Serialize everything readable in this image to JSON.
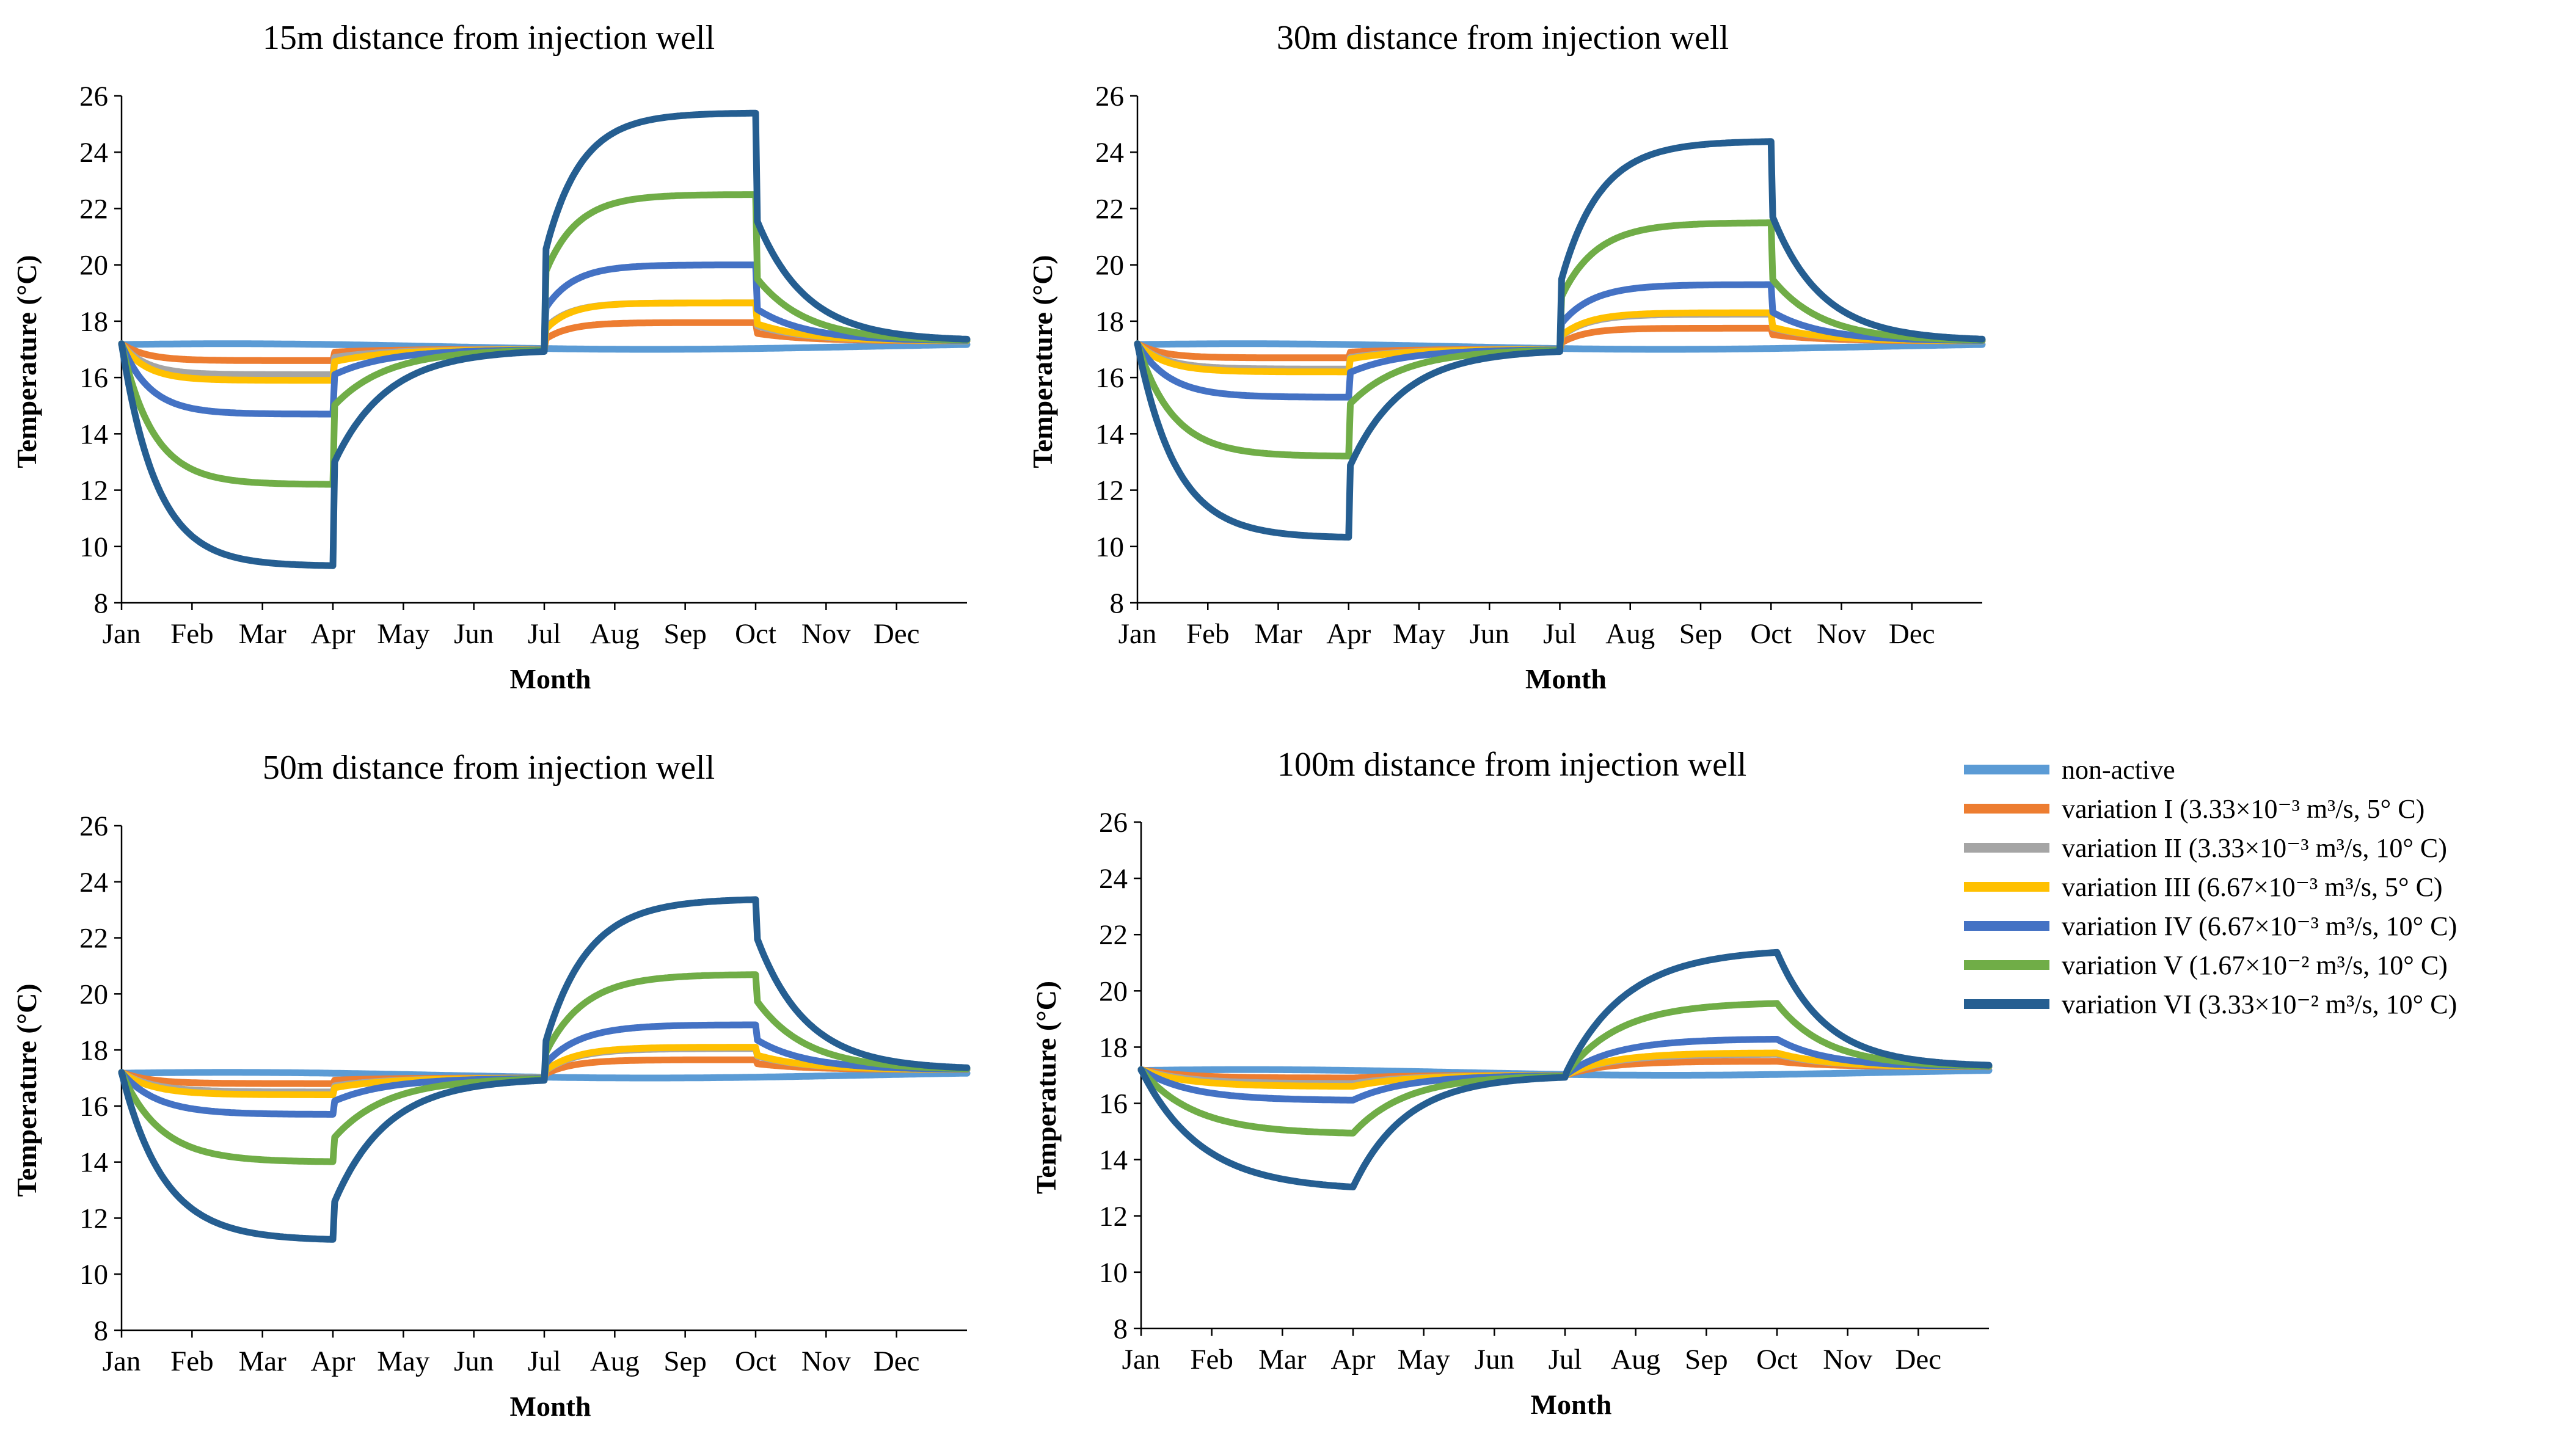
{
  "colors": {
    "non_active": "#5B9BD5",
    "var1": "#ED7D31",
    "var2": "#A5A5A5",
    "var3": "#FFC000",
    "var4": "#4472C4",
    "var5": "#70AD47",
    "var6": "#255E91"
  },
  "legend": [
    {
      "key": "non_active",
      "label": "non-active"
    },
    {
      "key": "var1",
      "label": "variation I (3.33×10⁻³ m³/s, 5° C)"
    },
    {
      "key": "var2",
      "label": "variation II (3.33×10⁻³ m³/s, 10° C)"
    },
    {
      "key": "var3",
      "label": "variation III (6.67×10⁻³ m³/s, 5° C)"
    },
    {
      "key": "var4",
      "label": "variation IV (6.67×10⁻³ m³/s, 10° C)"
    },
    {
      "key": "var5",
      "label": "variation V (1.67×10⁻² m³/s, 10° C)"
    },
    {
      "key": "var6",
      "label": "variation VI (3.33×10⁻² m³/s, 10° C)"
    }
  ],
  "chart_data": [
    {
      "type": "line",
      "title": "15m distance from injection well",
      "xlabel": "Month",
      "ylabel": "Temperature (°C)",
      "categories": [
        "Jan",
        "Feb",
        "Mar",
        "Apr",
        "May",
        "Jun",
        "Jul",
        "Aug",
        "Sep",
        "Oct",
        "Nov",
        "Dec"
      ],
      "ylim": [
        8,
        26
      ],
      "yticks": [
        8,
        10,
        12,
        14,
        16,
        18,
        20,
        22,
        24,
        26
      ],
      "series": [
        {
          "key": "non_active",
          "name": "non-active",
          "amp_winter": -0.1,
          "amp_summer": -0.1,
          "tau": 0.3,
          "jump": 0
        },
        {
          "key": "var1",
          "name": "variation I",
          "amp_winter": 0.6,
          "amp_summer": 0.75,
          "tau": 0.35,
          "jump": 0.5
        },
        {
          "key": "var2",
          "name": "variation II",
          "amp_winter": 1.1,
          "amp_summer": 1.45,
          "tau": 0.35,
          "jump": 0.55
        },
        {
          "key": "var3",
          "name": "variation III",
          "amp_winter": 1.3,
          "amp_summer": 1.45,
          "tau": 0.35,
          "jump": 0.5
        },
        {
          "key": "var4",
          "name": "variation IV",
          "amp_winter": 2.5,
          "amp_summer": 2.8,
          "tau": 0.4,
          "jump": 0.55
        },
        {
          "key": "var5",
          "name": "variation V",
          "amp_winter": 5.0,
          "amp_summer": 5.3,
          "tau": 0.45,
          "jump": 0.55
        },
        {
          "key": "var6",
          "name": "variation VI",
          "amp_winter": 7.9,
          "amp_summer": 8.2,
          "tau": 0.5,
          "jump": 0.45
        }
      ]
    },
    {
      "type": "line",
      "title": "30m distance from injection well",
      "xlabel": "Month",
      "ylabel": "Temperature (°C)",
      "categories": [
        "Jan",
        "Feb",
        "Mar",
        "Apr",
        "May",
        "Jun",
        "Jul",
        "Aug",
        "Sep",
        "Oct",
        "Nov",
        "Dec"
      ],
      "ylim": [
        8,
        26
      ],
      "yticks": [
        8,
        10,
        12,
        14,
        16,
        18,
        20,
        22,
        24,
        26
      ],
      "series": [
        {
          "key": "non_active",
          "name": "non-active",
          "amp_winter": -0.1,
          "amp_summer": -0.1,
          "tau": 0.3,
          "jump": 0
        },
        {
          "key": "var1",
          "name": "variation I",
          "amp_winter": 0.5,
          "amp_summer": 0.55,
          "tau": 0.35,
          "jump": 0.4
        },
        {
          "key": "var2",
          "name": "variation II",
          "amp_winter": 0.9,
          "amp_summer": 1.05,
          "tau": 0.4,
          "jump": 0.45
        },
        {
          "key": "var3",
          "name": "variation III",
          "amp_winter": 1.0,
          "amp_summer": 1.1,
          "tau": 0.4,
          "jump": 0.45
        },
        {
          "key": "var4",
          "name": "variation IV",
          "amp_winter": 1.9,
          "amp_summer": 2.1,
          "tau": 0.45,
          "jump": 0.45
        },
        {
          "key": "var5",
          "name": "variation V",
          "amp_winter": 4.0,
          "amp_summer": 4.3,
          "tau": 0.5,
          "jump": 0.45
        },
        {
          "key": "var6",
          "name": "variation VI",
          "amp_winter": 6.9,
          "amp_summer": 7.2,
          "tau": 0.55,
          "jump": 0.35
        }
      ]
    },
    {
      "type": "line",
      "title": "50m distance from injection well",
      "xlabel": "Month",
      "ylabel": "Temperature (°C)",
      "categories": [
        "Jan",
        "Feb",
        "Mar",
        "Apr",
        "May",
        "Jun",
        "Jul",
        "Aug",
        "Sep",
        "Oct",
        "Nov",
        "Dec"
      ],
      "ylim": [
        8,
        26
      ],
      "yticks": [
        8,
        10,
        12,
        14,
        16,
        18,
        20,
        22,
        24,
        26
      ],
      "series": [
        {
          "key": "non_active",
          "name": "non-active",
          "amp_winter": -0.1,
          "amp_summer": -0.1,
          "tau": 0.3,
          "jump": 0
        },
        {
          "key": "var1",
          "name": "variation I",
          "amp_winter": 0.4,
          "amp_summer": 0.45,
          "tau": 0.4,
          "jump": 0.3
        },
        {
          "key": "var2",
          "name": "variation II",
          "amp_winter": 0.7,
          "amp_summer": 0.85,
          "tau": 0.45,
          "jump": 0.3
        },
        {
          "key": "var3",
          "name": "variation III",
          "amp_winter": 0.8,
          "amp_summer": 0.9,
          "tau": 0.45,
          "jump": 0.3
        },
        {
          "key": "var4",
          "name": "variation IV",
          "amp_winter": 1.5,
          "amp_summer": 1.7,
          "tau": 0.5,
          "jump": 0.3
        },
        {
          "key": "var5",
          "name": "variation V",
          "amp_winter": 3.2,
          "amp_summer": 3.5,
          "tau": 0.55,
          "jump": 0.25
        },
        {
          "key": "var6",
          "name": "variation VI",
          "amp_winter": 6.0,
          "amp_summer": 6.2,
          "tau": 0.6,
          "jump": 0.2
        }
      ]
    },
    {
      "type": "line",
      "title": "100m distance from injection well",
      "xlabel": "Month",
      "ylabel": "Temperature (°C)",
      "categories": [
        "Jan",
        "Feb",
        "Mar",
        "Apr",
        "May",
        "Jun",
        "Jul",
        "Aug",
        "Sep",
        "Oct",
        "Nov",
        "Dec"
      ],
      "ylim": [
        8,
        26
      ],
      "yticks": [
        8,
        10,
        12,
        14,
        16,
        18,
        20,
        22,
        24,
        26
      ],
      "series": [
        {
          "key": "non_active",
          "name": "non-active",
          "amp_winter": -0.1,
          "amp_summer": -0.1,
          "tau": 0.3,
          "jump": 0
        },
        {
          "key": "var1",
          "name": "variation I",
          "amp_winter": 0.3,
          "amp_summer": 0.3,
          "tau": 0.6,
          "jump": 0
        },
        {
          "key": "var2",
          "name": "variation II",
          "amp_winter": 0.5,
          "amp_summer": 0.55,
          "tau": 0.65,
          "jump": 0
        },
        {
          "key": "var3",
          "name": "variation III",
          "amp_winter": 0.6,
          "amp_summer": 0.6,
          "tau": 0.65,
          "jump": 0
        },
        {
          "key": "var4",
          "name": "variation IV",
          "amp_winter": 1.1,
          "amp_summer": 1.1,
          "tau": 0.7,
          "jump": 0
        },
        {
          "key": "var5",
          "name": "variation V",
          "amp_winter": 2.3,
          "amp_summer": 2.4,
          "tau": 0.75,
          "jump": 0
        },
        {
          "key": "var6",
          "name": "variation VI",
          "amp_winter": 4.3,
          "amp_summer": 4.3,
          "tau": 0.85,
          "jump": 0
        }
      ]
    }
  ]
}
